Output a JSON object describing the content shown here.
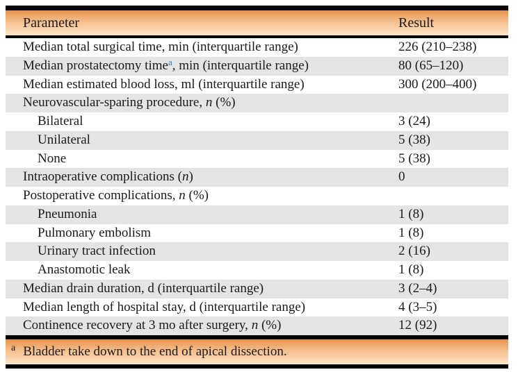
{
  "table": {
    "columns": [
      "Parameter",
      "Result"
    ],
    "colors": {
      "band_gradient_top": "#e8924b",
      "band_gradient_bottom": "#fce4c7",
      "row_stripe": "#e4e4e4",
      "rule": "#000000",
      "text": "#1a1a1a",
      "footnote_link": "#2e7cb4"
    },
    "rows": [
      {
        "indent": false,
        "result": "226 (210–238)",
        "param_parts": [
          {
            "text": "Median total surgical time, min (interquartile range)"
          }
        ]
      },
      {
        "indent": false,
        "result": "80 (65–120)",
        "param_parts": [
          {
            "text": "Median prostatectomy time"
          },
          {
            "text": "a",
            "sup": true,
            "link": true
          },
          {
            "text": ", min (interquartile range)"
          }
        ]
      },
      {
        "indent": false,
        "result": "300 (200–400)",
        "param_parts": [
          {
            "text": "Median estimated blood loss, ml (interquartile range)"
          }
        ]
      },
      {
        "indent": false,
        "result": "",
        "param_parts": [
          {
            "text": "Neurovascular-sparing procedure, "
          },
          {
            "text": "n",
            "italic": true
          },
          {
            "text": " (%)"
          }
        ]
      },
      {
        "indent": true,
        "result": "3 (24)",
        "param_parts": [
          {
            "text": "Bilateral"
          }
        ]
      },
      {
        "indent": true,
        "result": "5 (38)",
        "param_parts": [
          {
            "text": "Unilateral"
          }
        ]
      },
      {
        "indent": true,
        "result": "5 (38)",
        "param_parts": [
          {
            "text": "None"
          }
        ]
      },
      {
        "indent": false,
        "result": "0",
        "param_parts": [
          {
            "text": "Intraoperative complications ("
          },
          {
            "text": "n",
            "italic": true
          },
          {
            "text": ")"
          }
        ]
      },
      {
        "indent": false,
        "result": "",
        "param_parts": [
          {
            "text": "Postoperative complications, "
          },
          {
            "text": "n",
            "italic": true
          },
          {
            "text": " (%)"
          }
        ]
      },
      {
        "indent": true,
        "result": "1 (8)",
        "param_parts": [
          {
            "text": "Pneumonia"
          }
        ]
      },
      {
        "indent": true,
        "result": "1 (8)",
        "param_parts": [
          {
            "text": "Pulmonary embolism"
          }
        ]
      },
      {
        "indent": true,
        "result": "2 (16)",
        "param_parts": [
          {
            "text": "Urinary tract infection"
          }
        ]
      },
      {
        "indent": true,
        "result": "1 (8)",
        "param_parts": [
          {
            "text": "Anastomotic leak"
          }
        ]
      },
      {
        "indent": false,
        "result": "3 (2–4)",
        "param_parts": [
          {
            "text": "Median drain duration, d (interquartile range)"
          }
        ]
      },
      {
        "indent": false,
        "result": "4 (3–5)",
        "param_parts": [
          {
            "text": "Median length of hospital stay, d (interquartile range)"
          }
        ]
      },
      {
        "indent": false,
        "result": "12 (92)",
        "param_parts": [
          {
            "text": "Continence recovery at 3 mo after surgery, "
          },
          {
            "text": "n",
            "italic": true
          },
          {
            "text": " (%)"
          }
        ]
      }
    ],
    "footnote": {
      "marker": "a",
      "text": "Bladder take down to the end of apical dissection."
    }
  }
}
